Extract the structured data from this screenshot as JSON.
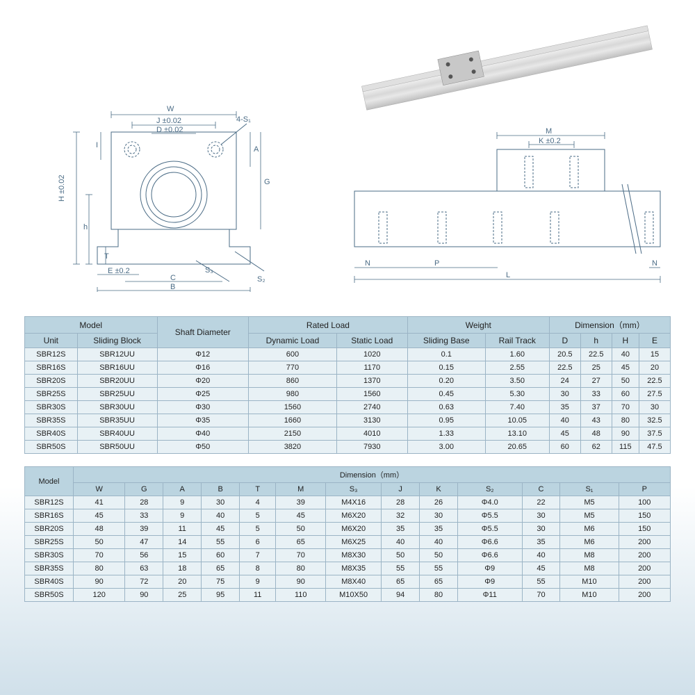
{
  "diagram_labels": {
    "left": {
      "W": "W",
      "J": "J ±0.02",
      "D": "D ±0.02",
      "S4": "4-S₁",
      "H": "H ±0.02",
      "h": "h",
      "I": "I",
      "A": "A",
      "G": "G",
      "T": "T",
      "E": "E ±0.2",
      "C": "C",
      "B": "B",
      "S3": "S₃",
      "S2": "S₂"
    },
    "right": {
      "M": "M",
      "K": "K ±0.2",
      "N": "N",
      "P": "P",
      "L": "L"
    }
  },
  "table1": {
    "headers": {
      "model": "Model",
      "unit": "Unit",
      "sliding_block": "Sliding Block",
      "shaft_diameter": "Shaft Diameter",
      "rated_load": "Rated Load",
      "dynamic_load": "Dynamic Load",
      "static_load": "Static Load",
      "weight": "Weight",
      "sliding_base": "Sliding Base",
      "rail_track": "Rail Track",
      "dimension": "Dimension（mm）",
      "D": "D",
      "h": "h",
      "H": "H",
      "E": "E"
    },
    "rows": [
      {
        "unit": "SBR12S",
        "block": "SBR12UU",
        "dia": "Φ12",
        "dyn": "600",
        "stat": "1020",
        "sb": "0.1",
        "rt": "1.60",
        "D": "20.5",
        "h": "22.5",
        "H": "40",
        "E": "15"
      },
      {
        "unit": "SBR16S",
        "block": "SBR16UU",
        "dia": "Φ16",
        "dyn": "770",
        "stat": "1170",
        "sb": "0.15",
        "rt": "2.55",
        "D": "22.5",
        "h": "25",
        "H": "45",
        "E": "20"
      },
      {
        "unit": "SBR20S",
        "block": "SBR20UU",
        "dia": "Φ20",
        "dyn": "860",
        "stat": "1370",
        "sb": "0.20",
        "rt": "3.50",
        "D": "24",
        "h": "27",
        "H": "50",
        "E": "22.5"
      },
      {
        "unit": "SBR25S",
        "block": "SBR25UU",
        "dia": "Φ25",
        "dyn": "980",
        "stat": "1560",
        "sb": "0.45",
        "rt": "5.30",
        "D": "30",
        "h": "33",
        "H": "60",
        "E": "27.5"
      },
      {
        "unit": "SBR30S",
        "block": "SBR30UU",
        "dia": "Φ30",
        "dyn": "1560",
        "stat": "2740",
        "sb": "0.63",
        "rt": "7.40",
        "D": "35",
        "h": "37",
        "H": "70",
        "E": "30"
      },
      {
        "unit": "SBR35S",
        "block": "SBR35UU",
        "dia": "Φ35",
        "dyn": "1660",
        "stat": "3130",
        "sb": "0.95",
        "rt": "10.05",
        "D": "40",
        "h": "43",
        "H": "80",
        "E": "32.5"
      },
      {
        "unit": "SBR40S",
        "block": "SBR40UU",
        "dia": "Φ40",
        "dyn": "2150",
        "stat": "4010",
        "sb": "1.33",
        "rt": "13.10",
        "D": "45",
        "h": "48",
        "H": "90",
        "E": "37.5"
      },
      {
        "unit": "SBR50S",
        "block": "SBR50UU",
        "dia": "Φ50",
        "dyn": "3820",
        "stat": "7930",
        "sb": "3.00",
        "rt": "20.65",
        "D": "60",
        "h": "62",
        "H": "115",
        "E": "47.5"
      }
    ]
  },
  "table2": {
    "headers": {
      "model": "Model",
      "dimension": "Dimension（mm）",
      "W": "W",
      "G": "G",
      "A": "A",
      "B": "B",
      "T": "T",
      "M": "M",
      "S3": "S₃",
      "J": "J",
      "K": "K",
      "S2": "S₂",
      "C": "C",
      "S1": "S₁",
      "P": "P"
    },
    "rows": [
      {
        "model": "SBR12S",
        "W": "41",
        "G": "28",
        "A": "9",
        "B": "30",
        "T": "4",
        "M": "39",
        "S3": "M4X16",
        "J": "28",
        "K": "26",
        "S2": "Φ4.0",
        "C": "22",
        "S1": "M5",
        "P": "100"
      },
      {
        "model": "SBR16S",
        "W": "45",
        "G": "33",
        "A": "9",
        "B": "40",
        "T": "5",
        "M": "45",
        "S3": "M6X20",
        "J": "32",
        "K": "30",
        "S2": "Φ5.5",
        "C": "30",
        "S1": "M5",
        "P": "150"
      },
      {
        "model": "SBR20S",
        "W": "48",
        "G": "39",
        "A": "11",
        "B": "45",
        "T": "5",
        "M": "50",
        "S3": "M6X20",
        "J": "35",
        "K": "35",
        "S2": "Φ5.5",
        "C": "30",
        "S1": "M6",
        "P": "150"
      },
      {
        "model": "SBR25S",
        "W": "50",
        "G": "47",
        "A": "14",
        "B": "55",
        "T": "6",
        "M": "65",
        "S3": "M6X25",
        "J": "40",
        "K": "40",
        "S2": "Φ6.6",
        "C": "35",
        "S1": "M6",
        "P": "200"
      },
      {
        "model": "SBR30S",
        "W": "70",
        "G": "56",
        "A": "15",
        "B": "60",
        "T": "7",
        "M": "70",
        "S3": "M8X30",
        "J": "50",
        "K": "50",
        "S2": "Φ6.6",
        "C": "40",
        "S1": "M8",
        "P": "200"
      },
      {
        "model": "SBR35S",
        "W": "80",
        "G": "63",
        "A": "18",
        "B": "65",
        "T": "8",
        "M": "80",
        "S3": "M8X35",
        "J": "55",
        "K": "55",
        "S2": "Φ9",
        "C": "45",
        "S1": "M8",
        "P": "200"
      },
      {
        "model": "SBR40S",
        "W": "90",
        "G": "72",
        "A": "20",
        "B": "75",
        "T": "9",
        "M": "90",
        "S3": "M8X40",
        "J": "65",
        "K": "65",
        "S2": "Φ9",
        "C": "55",
        "S1": "M10",
        "P": "200"
      },
      {
        "model": "SBR50S",
        "W": "120",
        "G": "90",
        "A": "25",
        "B": "95",
        "T": "11",
        "M": "110",
        "S3": "M10X50",
        "J": "94",
        "K": "80",
        "S2": "Φ11",
        "C": "70",
        "S1": "M10",
        "P": "200"
      }
    ]
  },
  "colors": {
    "header_bg": "#bbd4e0",
    "cell_bg": "#e8f1f5",
    "border": "#9bb4c5",
    "line": "#4a6b85"
  }
}
